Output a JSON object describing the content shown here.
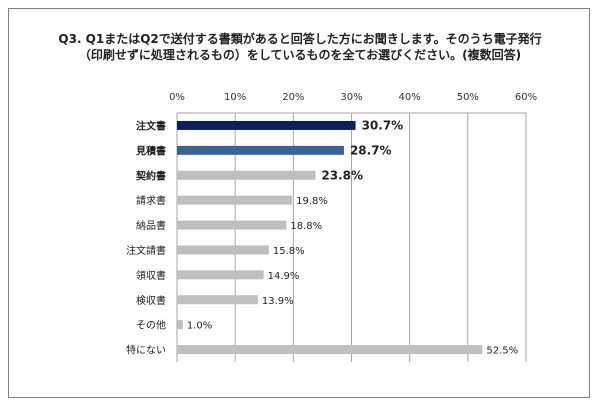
{
  "chart_data": {
    "type": "bar",
    "orientation": "horizontal",
    "title": [
      "Q3. Q1またはQ2で送付する書類があると回答した方にお聞きします。そのうち電子発行",
      "（印刷せずに処理されるもの）をしているものを全てお選びください。(複数回答)"
    ],
    "categories": [
      "注文書",
      "見積書",
      "契約書",
      "請求書",
      "納品書",
      "注文請書",
      "領収書",
      "検収書",
      "その他",
      "特にない"
    ],
    "values": [
      30.7,
      28.7,
      23.8,
      19.8,
      18.8,
      15.8,
      14.9,
      13.9,
      1.0,
      52.5
    ],
    "value_labels": [
      "30.7%",
      "28.7%",
      "23.8%",
      "19.8%",
      "18.8%",
      "15.8%",
      "14.9%",
      "13.9%",
      "1.0%",
      "52.5%"
    ],
    "highlight": [
      true,
      true,
      true,
      false,
      false,
      false,
      false,
      false,
      false,
      false
    ],
    "colors": [
      "#0b2160",
      "#3a6496",
      "#bfbfbf",
      "#bfbfbf",
      "#bfbfbf",
      "#bfbfbf",
      "#bfbfbf",
      "#bfbfbf",
      "#bfbfbf",
      "#bfbfbf"
    ],
    "xlim": [
      0,
      60
    ],
    "xticks": [
      "0%",
      "10%",
      "20%",
      "30%",
      "40%",
      "50%",
      "60%"
    ],
    "xticks_values": [
      0,
      10,
      20,
      30,
      40,
      50,
      60
    ],
    "grid": true,
    "xaxis_position": "top",
    "xlabel": "",
    "ylabel": ""
  }
}
